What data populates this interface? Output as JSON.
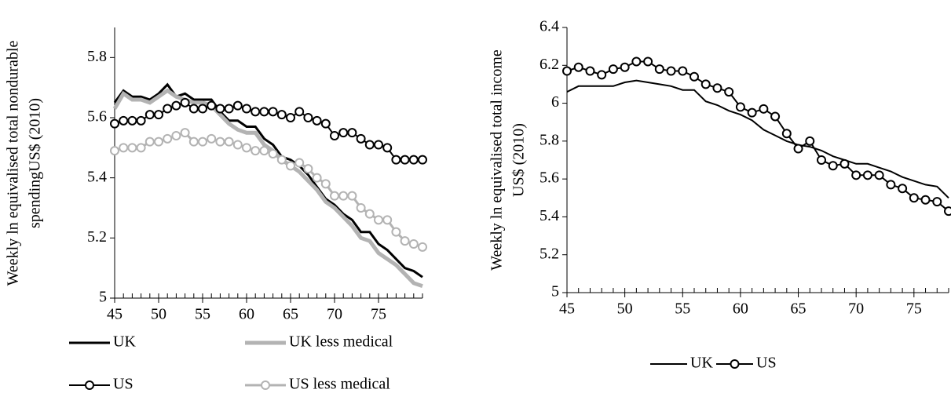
{
  "chart_data": [
    {
      "type": "line",
      "ylabel": [
        "Weekly ln equivalised total nondurable",
        "spendingUS$ (2010)"
      ],
      "x": [
        45,
        46,
        47,
        48,
        49,
        50,
        51,
        52,
        53,
        54,
        55,
        56,
        57,
        58,
        59,
        60,
        61,
        62,
        63,
        64,
        65,
        66,
        67,
        68,
        69,
        70,
        71,
        72,
        73,
        74,
        75,
        76,
        77,
        78,
        79,
        80
      ],
      "xlim": [
        45,
        80
      ],
      "xticks": [
        45,
        50,
        55,
        60,
        65,
        70,
        75
      ],
      "ylim": [
        5,
        5.9
      ],
      "yticks": [
        5,
        5.2,
        5.4,
        5.6,
        5.8
      ],
      "legend": "bottom",
      "series": [
        {
          "name": "UK",
          "color": "#000000",
          "width": 3,
          "marker": "none",
          "values": [
            5.65,
            5.69,
            5.67,
            5.67,
            5.66,
            5.68,
            5.71,
            5.67,
            5.68,
            5.66,
            5.66,
            5.66,
            5.62,
            5.59,
            5.59,
            5.57,
            5.57,
            5.53,
            5.51,
            5.47,
            5.46,
            5.44,
            5.41,
            5.37,
            5.33,
            5.31,
            5.28,
            5.26,
            5.22,
            5.22,
            5.18,
            5.16,
            5.13,
            5.1,
            5.09,
            5.07
          ]
        },
        {
          "name": "UK less medical",
          "color": "#b3b3b3",
          "width": 5,
          "marker": "none",
          "values": [
            5.63,
            5.68,
            5.66,
            5.66,
            5.65,
            5.67,
            5.69,
            5.67,
            5.66,
            5.65,
            5.65,
            5.64,
            5.61,
            5.58,
            5.56,
            5.55,
            5.55,
            5.51,
            5.49,
            5.46,
            5.44,
            5.42,
            5.39,
            5.36,
            5.32,
            5.3,
            5.27,
            5.24,
            5.2,
            5.19,
            5.15,
            5.13,
            5.11,
            5.08,
            5.05,
            5.04
          ]
        },
        {
          "name": "US",
          "color": "#000000",
          "width": 2,
          "marker": "circle",
          "values": [
            5.58,
            5.59,
            5.59,
            5.59,
            5.61,
            5.61,
            5.63,
            5.64,
            5.65,
            5.63,
            5.63,
            5.64,
            5.63,
            5.63,
            5.64,
            5.63,
            5.62,
            5.62,
            5.62,
            5.61,
            5.6,
            5.62,
            5.6,
            5.59,
            5.58,
            5.54,
            5.55,
            5.55,
            5.53,
            5.51,
            5.51,
            5.5,
            5.46,
            5.46,
            5.46,
            5.46
          ]
        },
        {
          "name": "US less medical",
          "color": "#b3b3b3",
          "width": 3,
          "marker": "circle",
          "values": [
            5.49,
            5.5,
            5.5,
            5.5,
            5.52,
            5.52,
            5.53,
            5.54,
            5.55,
            5.52,
            5.52,
            5.53,
            5.52,
            5.52,
            5.51,
            5.5,
            5.49,
            5.49,
            5.48,
            5.46,
            5.44,
            5.45,
            5.43,
            5.4,
            5.38,
            5.34,
            5.34,
            5.34,
            5.3,
            5.28,
            5.26,
            5.26,
            5.22,
            5.19,
            5.18,
            5.17
          ]
        }
      ]
    },
    {
      "type": "line",
      "ylabel": [
        "Weekly ln equivalised  total income",
        "US$ (2010)"
      ],
      "x": [
        45,
        46,
        47,
        48,
        49,
        50,
        51,
        52,
        53,
        54,
        55,
        56,
        57,
        58,
        59,
        60,
        61,
        62,
        63,
        64,
        65,
        66,
        67,
        68,
        69,
        70,
        71,
        72,
        73,
        74,
        75,
        76,
        77,
        78
      ],
      "xlim": [
        45,
        78
      ],
      "xticks": [
        45,
        50,
        55,
        60,
        65,
        70,
        75
      ],
      "ylim": [
        5,
        6.4
      ],
      "yticks": [
        5,
        5.2,
        5.4,
        5.6,
        5.8,
        6,
        6.2,
        6.4
      ],
      "legend": "bottom",
      "series": [
        {
          "name": "UK",
          "color": "#000000",
          "width": 2,
          "marker": "none",
          "values": [
            6.06,
            6.09,
            6.09,
            6.09,
            6.09,
            6.11,
            6.12,
            6.11,
            6.1,
            6.09,
            6.07,
            6.07,
            6.01,
            5.99,
            5.96,
            5.94,
            5.91,
            5.86,
            5.83,
            5.8,
            5.78,
            5.77,
            5.75,
            5.72,
            5.7,
            5.68,
            5.68,
            5.66,
            5.64,
            5.61,
            5.59,
            5.57,
            5.56,
            5.5
          ]
        },
        {
          "name": "US",
          "color": "#000000",
          "width": 2,
          "marker": "circle",
          "values": [
            6.17,
            6.19,
            6.17,
            6.15,
            6.18,
            6.19,
            6.22,
            6.22,
            6.18,
            6.17,
            6.17,
            6.14,
            6.1,
            6.08,
            6.06,
            5.98,
            5.95,
            5.97,
            5.93,
            5.84,
            5.76,
            5.8,
            5.7,
            5.67,
            5.68,
            5.62,
            5.62,
            5.62,
            5.57,
            5.55,
            5.5,
            5.49,
            5.48,
            5.43
          ]
        }
      ]
    }
  ]
}
